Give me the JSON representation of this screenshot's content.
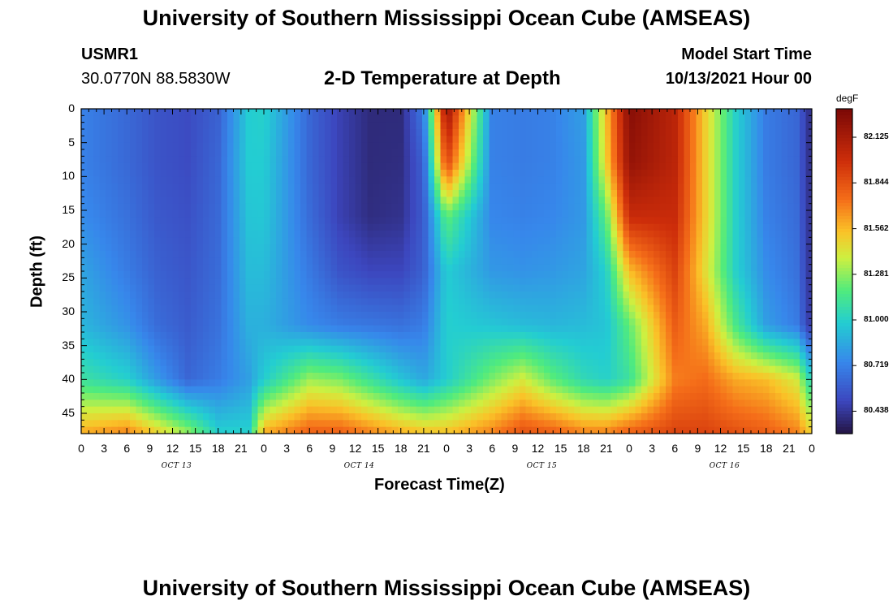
{
  "header": {
    "title": "University of Southern Mississippi Ocean Cube (AMSEAS)",
    "station_id": "USMR1",
    "station_coords": "30.0770N  88.5830W",
    "chart_title": "2-D Temperature at Depth",
    "model_start_label": "Model Start Time",
    "model_start_value": "10/13/2021 Hour 00"
  },
  "footer": {
    "title_repeat": "University of Southern Mississippi Ocean Cube (AMSEAS)"
  },
  "chart_data": {
    "type": "heatmap",
    "title": "2-D Temperature at Depth",
    "xlabel": "Forecast Time(Z)",
    "ylabel": "Depth (ft)",
    "units": "degF",
    "x_hours_range": [
      0,
      96
    ],
    "y_depth_range_ft": [
      0,
      48
    ],
    "x_tick_labels": [
      "0",
      "3",
      "6",
      "9",
      "12",
      "15",
      "18",
      "21",
      "0",
      "3",
      "6",
      "9",
      "12",
      "15",
      "18",
      "21",
      "0",
      "3",
      "6",
      "9",
      "12",
      "15",
      "18",
      "21",
      "0",
      "3",
      "6",
      "9",
      "12",
      "15",
      "18",
      "21",
      "0"
    ],
    "y_tick_labels": [
      "0",
      "5",
      "10",
      "15",
      "20",
      "25",
      "30",
      "35",
      "40",
      "45"
    ],
    "y_tick_values": [
      0,
      5,
      10,
      15,
      20,
      25,
      30,
      35,
      40,
      45
    ],
    "date_labels": [
      {
        "text": "OCT 13",
        "hour": 12
      },
      {
        "text": "OCT 14",
        "hour": 36
      },
      {
        "text": "OCT 15",
        "hour": 60
      },
      {
        "text": "OCT 16",
        "hour": 84
      }
    ],
    "colorbar": {
      "unit_label": "degF",
      "min": 80.3,
      "max": 82.3,
      "ticks": [
        "82.125",
        "81.844",
        "81.562",
        "81.281",
        "81.000",
        "80.719",
        "80.438"
      ],
      "tick_values": [
        82.125,
        81.844,
        81.562,
        81.281,
        81.0,
        80.719,
        80.438
      ]
    },
    "depth_rows_ft": [
      0,
      8,
      16,
      24,
      32,
      40,
      48
    ],
    "time_cols_hr": [
      0,
      6,
      10,
      14,
      18,
      22,
      24,
      30,
      34,
      38,
      42,
      45,
      48,
      54,
      58,
      62,
      66,
      69,
      72,
      78,
      82,
      86,
      90,
      94,
      96
    ],
    "grid_values": [
      [
        80.72,
        80.63,
        80.55,
        80.52,
        80.6,
        80.98,
        81.0,
        80.62,
        80.48,
        80.39,
        80.39,
        80.7,
        82.2,
        80.72,
        80.7,
        80.72,
        80.82,
        81.55,
        82.25,
        82.05,
        81.5,
        81.0,
        80.7,
        80.62,
        80.38
      ],
      [
        80.72,
        80.63,
        80.55,
        80.52,
        80.62,
        80.98,
        80.98,
        80.62,
        80.48,
        80.39,
        80.4,
        80.6,
        81.9,
        80.72,
        80.7,
        80.72,
        80.8,
        81.5,
        82.2,
        82.05,
        81.5,
        81.0,
        80.7,
        80.62,
        80.38
      ],
      [
        80.76,
        80.66,
        80.57,
        80.54,
        80.63,
        80.95,
        80.96,
        80.64,
        80.48,
        80.4,
        80.42,
        80.58,
        81.2,
        80.74,
        80.72,
        80.74,
        80.8,
        81.2,
        82.0,
        82.0,
        81.5,
        81.0,
        80.72,
        80.64,
        80.39
      ],
      [
        80.84,
        80.7,
        80.6,
        80.56,
        80.64,
        80.92,
        80.92,
        80.69,
        80.55,
        80.5,
        80.5,
        80.6,
        80.98,
        80.8,
        80.78,
        80.8,
        80.84,
        81.0,
        81.55,
        81.9,
        81.45,
        81.0,
        80.76,
        80.66,
        80.4
      ],
      [
        80.9,
        80.78,
        80.64,
        80.58,
        80.66,
        80.88,
        80.88,
        80.75,
        80.7,
        80.68,
        80.66,
        80.7,
        80.99,
        80.95,
        80.92,
        80.9,
        80.92,
        80.95,
        81.2,
        81.8,
        81.6,
        81.15,
        80.82,
        80.7,
        80.42
      ],
      [
        81.1,
        81.0,
        80.8,
        80.62,
        80.7,
        80.82,
        80.98,
        81.3,
        81.25,
        81.1,
        80.95,
        80.85,
        80.98,
        81.25,
        81.4,
        81.2,
        81.05,
        81.0,
        81.1,
        81.7,
        81.75,
        81.6,
        81.55,
        81.4,
        81.0
      ],
      [
        81.6,
        81.7,
        81.5,
        81.3,
        81.0,
        81.0,
        81.6,
        81.8,
        81.8,
        81.7,
        81.6,
        81.55,
        81.55,
        81.7,
        81.85,
        81.8,
        81.7,
        81.7,
        81.8,
        81.9,
        81.9,
        81.85,
        81.8,
        81.7,
        81.5
      ]
    ]
  }
}
